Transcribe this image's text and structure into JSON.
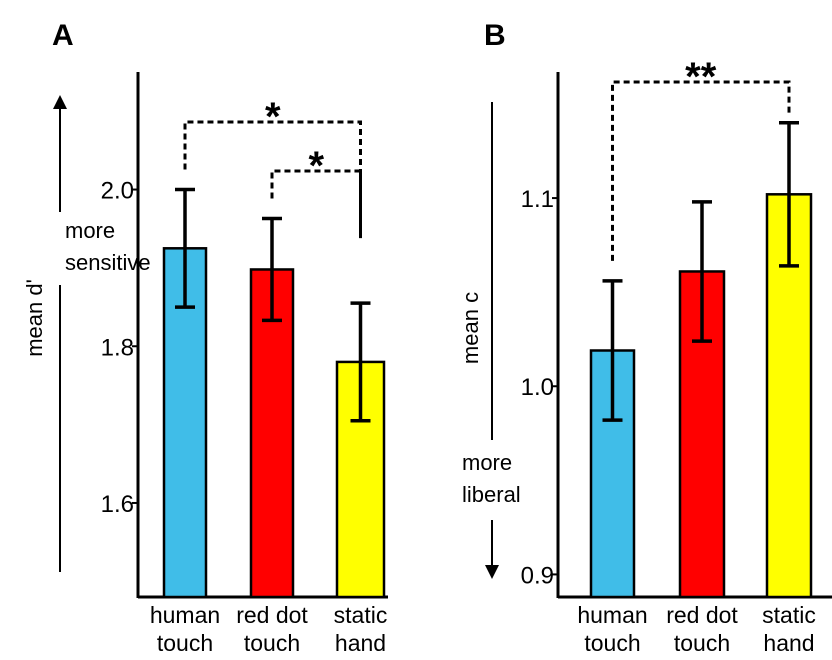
{
  "chart_data": [
    {
      "type": "bar",
      "panel_label": "A",
      "ylabel": "mean d'",
      "direction_note": [
        "more",
        "sensitive"
      ],
      "categories": [
        [
          "human",
          "touch"
        ],
        [
          "red dot",
          "touch"
        ],
        [
          "static",
          "hand"
        ]
      ],
      "values": [
        1.925,
        1.898,
        1.78
      ],
      "errors": [
        0.075,
        0.065,
        0.075
      ],
      "colors": [
        "#40bde8",
        "#ff0000",
        "#ffff00"
      ],
      "ylim": [
        1.48,
        2.15
      ],
      "yticks": [
        "1.6",
        "1.8",
        "2.0"
      ],
      "ytick_values": [
        1.6,
        1.8,
        2.0
      ],
      "significance": [
        {
          "from": 0,
          "to": 2,
          "label": "*"
        },
        {
          "from": 1,
          "to": 2,
          "label": "*"
        }
      ]
    },
    {
      "type": "bar",
      "panel_label": "B",
      "ylabel": "mean c",
      "direction_note": [
        "more",
        "liberal"
      ],
      "categories": [
        [
          "human",
          "touch"
        ],
        [
          "red dot",
          "touch"
        ],
        [
          "static",
          "hand"
        ]
      ],
      "values": [
        1.019,
        1.061,
        1.102
      ],
      "errors": [
        0.037,
        0.037,
        0.038
      ],
      "colors": [
        "#40bde8",
        "#ff0000",
        "#ffff00"
      ],
      "ylim": [
        0.888,
        1.167
      ],
      "yticks": [
        "0.9",
        "1.0",
        "1.1"
      ],
      "ytick_values": [
        0.9,
        1.0,
        1.1
      ],
      "significance": [
        {
          "from": 0,
          "to": 2,
          "label": "**"
        }
      ]
    }
  ]
}
